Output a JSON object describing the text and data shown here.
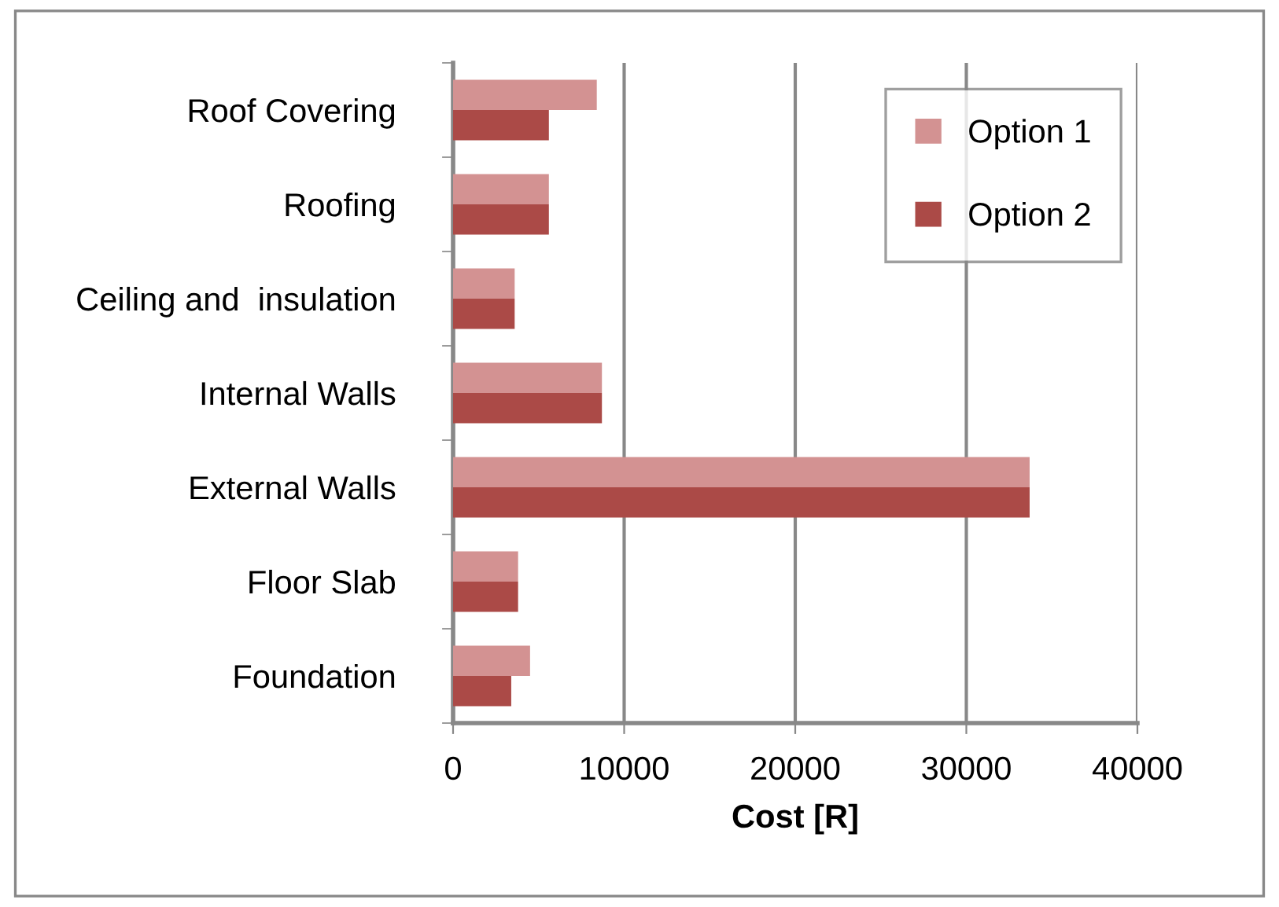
{
  "chart_data": {
    "type": "bar",
    "orientation": "horizontal",
    "xlabel": "Cost [R]",
    "categories": [
      "Roof Covering",
      "Roofing",
      "Ceiling and  insulation",
      "Internal Walls",
      "External Walls",
      "Floor Slab",
      "Foundation"
    ],
    "series": [
      {
        "name": "Option 1",
        "color": "#d39292",
        "values": [
          8400,
          5600,
          3600,
          8700,
          33700,
          3800,
          4500
        ]
      },
      {
        "name": "Option 2",
        "color": "#ab4a47",
        "values": [
          5600,
          5600,
          3600,
          8700,
          33700,
          3800,
          3400
        ]
      }
    ],
    "xlim": [
      0,
      40000
    ],
    "xticks": [
      0,
      10000,
      20000,
      30000,
      40000
    ],
    "grid": "x",
    "legend": "top right"
  }
}
